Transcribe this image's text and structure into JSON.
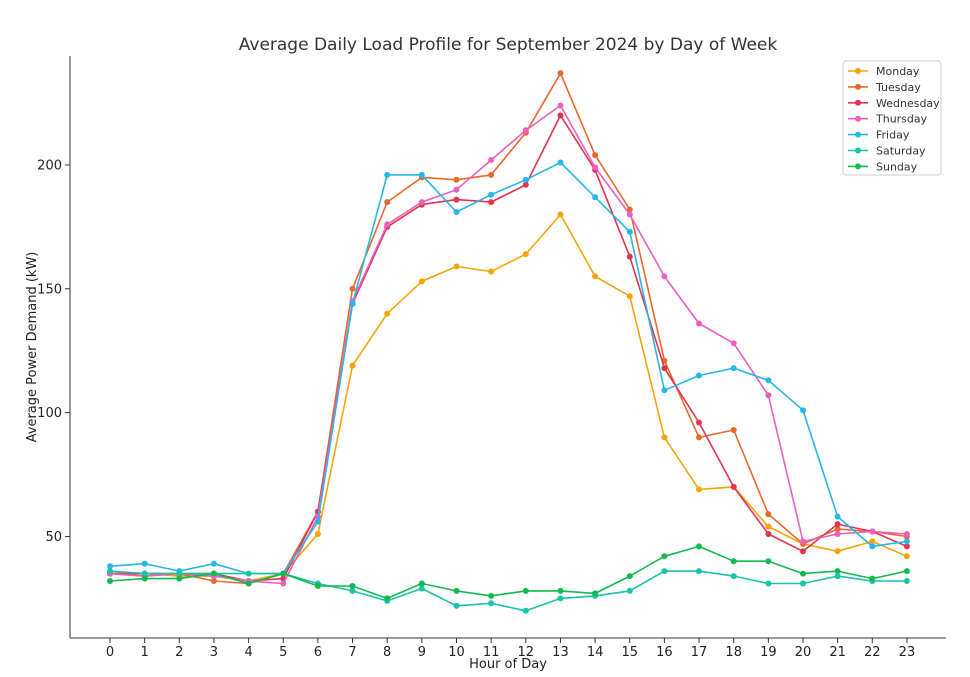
{
  "chart_data": {
    "type": "line",
    "title": "Average Daily Load Profile for September 2024 by Day of Week",
    "xlabel": "Hour of Day",
    "ylabel": "Average Power Demand (kW)",
    "x": [
      0,
      1,
      2,
      3,
      4,
      5,
      6,
      7,
      8,
      9,
      10,
      11,
      12,
      13,
      14,
      15,
      16,
      17,
      18,
      19,
      20,
      21,
      22,
      23
    ],
    "ylim": [
      9,
      244
    ],
    "yticks": [
      50,
      100,
      150,
      200
    ],
    "grid": false,
    "legend_position": "top-right",
    "series": [
      {
        "name": "Monday",
        "color": "#f5a30a",
        "values": [
          35,
          35,
          34,
          34,
          32,
          35,
          51,
          119,
          140,
          153,
          159,
          157,
          164,
          180,
          155,
          147,
          90,
          69,
          70,
          54,
          47,
          44,
          48,
          42
        ]
      },
      {
        "name": "Tuesday",
        "color": "#e8692a",
        "values": [
          35,
          34,
          35,
          32,
          31,
          35,
          60,
          150,
          185,
          195,
          194,
          196,
          213,
          237,
          204,
          182,
          121,
          90,
          93,
          59,
          47,
          53,
          52,
          50
        ]
      },
      {
        "name": "Wednesday",
        "color": "#e0344f",
        "values": [
          35,
          35,
          35,
          35,
          32,
          33,
          60,
          144,
          175,
          184,
          186,
          185,
          192,
          220,
          198,
          163,
          118,
          96,
          70,
          51,
          44,
          55,
          52,
          46
        ]
      },
      {
        "name": "Thursday",
        "color": "#ec5fc0",
        "values": [
          35,
          34,
          35,
          34,
          32,
          31,
          58,
          145,
          176,
          185,
          190,
          202,
          214,
          224,
          199,
          180,
          155,
          136,
          128,
          107,
          48,
          51,
          52,
          51
        ]
      },
      {
        "name": "Friday",
        "color": "#27b6e8",
        "values": [
          38,
          39,
          36,
          39,
          35,
          35,
          56,
          144,
          196,
          196,
          181,
          188,
          194,
          201,
          187,
          173,
          109,
          115,
          118,
          113,
          101,
          58,
          46,
          48
        ]
      },
      {
        "name": "Saturday",
        "color": "#17c4a8",
        "values": [
          36,
          35,
          35,
          35,
          35,
          35,
          31,
          28,
          24,
          29,
          22,
          23,
          20,
          25,
          26,
          28,
          36,
          36,
          34,
          31,
          31,
          34,
          32,
          32
        ]
      },
      {
        "name": "Sunday",
        "color": "#14b84f",
        "values": [
          32,
          33,
          33,
          35,
          31,
          35,
          30,
          30,
          25,
          31,
          28,
          26,
          28,
          28,
          27,
          34,
          42,
          46,
          40,
          40,
          35,
          36,
          33,
          36
        ]
      }
    ]
  }
}
